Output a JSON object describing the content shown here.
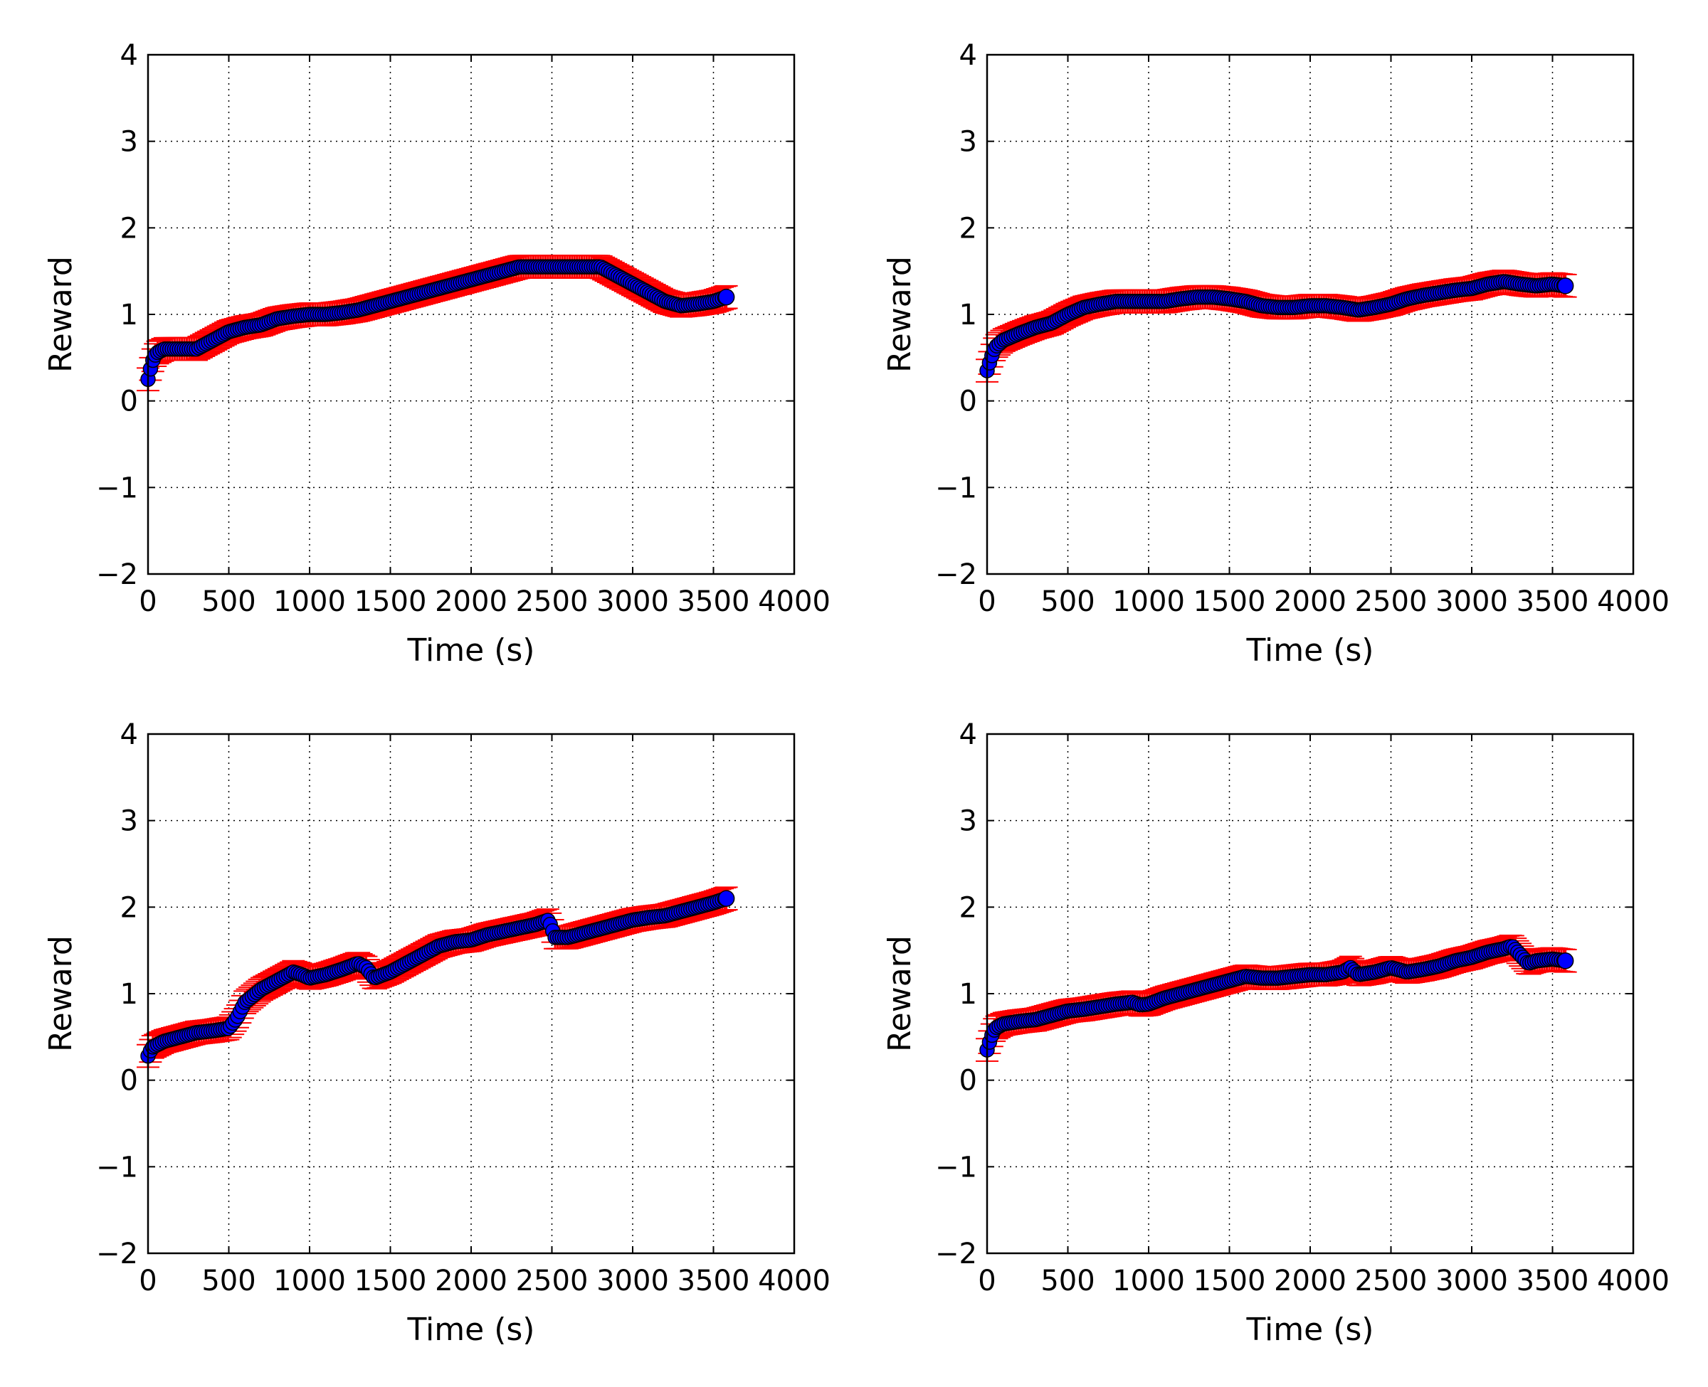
{
  "colors": {
    "marker_fill": "#0000ff",
    "marker_edge": "#000000",
    "errorbar": "#ff0000",
    "grid": "#000000",
    "background": "#ffffff"
  },
  "chart_data": [
    {
      "type": "scatter",
      "xlabel": "Time (s)",
      "ylabel": "Reward",
      "xlim": [
        0,
        4000
      ],
      "ylim": [
        -2,
        4
      ],
      "xticks": [
        0,
        500,
        1000,
        1500,
        2000,
        2500,
        3000,
        3500,
        4000
      ],
      "yticks": [
        -2,
        -1,
        0,
        1,
        2,
        3,
        4
      ],
      "xtick_labels": [
        "0",
        "500",
        "1000",
        "1500",
        "2000",
        "2500",
        "3000",
        "3500",
        "4000"
      ],
      "ytick_labels": [
        "−2",
        "−1",
        "0",
        "1",
        "2",
        "3",
        "4"
      ],
      "grid": true,
      "error_bars": true,
      "error_band": 0.13,
      "x": [
        0,
        25,
        50,
        100,
        200,
        300,
        400,
        500,
        600,
        700,
        800,
        900,
        1000,
        1100,
        1200,
        1300,
        1400,
        1500,
        1600,
        1700,
        1800,
        1900,
        2000,
        2100,
        2200,
        2300,
        2400,
        2500,
        2600,
        2700,
        2800,
        2850,
        2900,
        3000,
        3100,
        3200,
        3300,
        3400,
        3500,
        3580
      ],
      "y": [
        0.25,
        0.45,
        0.55,
        0.6,
        0.6,
        0.6,
        0.7,
        0.8,
        0.85,
        0.88,
        0.95,
        0.98,
        1.0,
        1.0,
        1.02,
        1.05,
        1.1,
        1.15,
        1.2,
        1.25,
        1.3,
        1.35,
        1.4,
        1.45,
        1.5,
        1.55,
        1.55,
        1.55,
        1.55,
        1.55,
        1.55,
        1.5,
        1.45,
        1.35,
        1.25,
        1.15,
        1.1,
        1.12,
        1.15,
        1.2
      ]
    },
    {
      "type": "scatter",
      "xlabel": "Time (s)",
      "ylabel": "Reward",
      "xlim": [
        0,
        4000
      ],
      "ylim": [
        -2,
        4
      ],
      "xticks": [
        0,
        500,
        1000,
        1500,
        2000,
        2500,
        3000,
        3500,
        4000
      ],
      "yticks": [
        -2,
        -1,
        0,
        1,
        2,
        3,
        4
      ],
      "xtick_labels": [
        "0",
        "500",
        "1000",
        "1500",
        "2000",
        "2500",
        "3000",
        "3500",
        "4000"
      ],
      "ytick_labels": [
        "−2",
        "−1",
        "0",
        "1",
        "2",
        "3",
        "4"
      ],
      "grid": true,
      "error_bars": true,
      "error_band": 0.13,
      "x": [
        0,
        25,
        50,
        100,
        200,
        300,
        400,
        500,
        600,
        700,
        800,
        900,
        1000,
        1100,
        1200,
        1300,
        1400,
        1500,
        1600,
        1700,
        1800,
        1900,
        2000,
        2100,
        2200,
        2300,
        2400,
        2500,
        2600,
        2700,
        2800,
        2900,
        3000,
        3100,
        3200,
        3300,
        3400,
        3500,
        3580
      ],
      "y": [
        0.35,
        0.5,
        0.62,
        0.7,
        0.78,
        0.85,
        0.9,
        1.0,
        1.08,
        1.12,
        1.15,
        1.15,
        1.15,
        1.15,
        1.18,
        1.2,
        1.2,
        1.18,
        1.15,
        1.1,
        1.08,
        1.08,
        1.1,
        1.1,
        1.08,
        1.05,
        1.08,
        1.12,
        1.18,
        1.22,
        1.25,
        1.28,
        1.3,
        1.35,
        1.38,
        1.35,
        1.33,
        1.35,
        1.33
      ]
    },
    {
      "type": "scatter",
      "xlabel": "Time (s)",
      "ylabel": "Reward",
      "xlim": [
        0,
        4000
      ],
      "ylim": [
        -2,
        4
      ],
      "xticks": [
        0,
        500,
        1000,
        1500,
        2000,
        2500,
        3000,
        3500,
        4000
      ],
      "yticks": [
        -2,
        -1,
        0,
        1,
        2,
        3,
        4
      ],
      "xtick_labels": [
        "0",
        "500",
        "1000",
        "1500",
        "2000",
        "2500",
        "3000",
        "3500",
        "4000"
      ],
      "ytick_labels": [
        "−2",
        "−1",
        "0",
        "1",
        "2",
        "3",
        "4"
      ],
      "grid": true,
      "error_bars": true,
      "error_band": 0.13,
      "x": [
        0,
        25,
        100,
        200,
        300,
        400,
        500,
        550,
        600,
        700,
        800,
        900,
        950,
        1000,
        1100,
        1200,
        1300,
        1350,
        1400,
        1500,
        1600,
        1700,
        1800,
        1900,
        2000,
        2100,
        2200,
        2300,
        2400,
        2480,
        2520,
        2600,
        2700,
        2800,
        2900,
        3000,
        3100,
        3200,
        3300,
        3400,
        3500,
        3580
      ],
      "y": [
        0.28,
        0.38,
        0.45,
        0.5,
        0.55,
        0.57,
        0.6,
        0.72,
        0.9,
        1.05,
        1.15,
        1.25,
        1.22,
        1.18,
        1.22,
        1.28,
        1.35,
        1.3,
        1.18,
        1.25,
        1.35,
        1.45,
        1.55,
        1.6,
        1.62,
        1.68,
        1.72,
        1.76,
        1.8,
        1.85,
        1.65,
        1.65,
        1.7,
        1.75,
        1.8,
        1.85,
        1.88,
        1.9,
        1.95,
        2.0,
        2.05,
        2.1
      ]
    },
    {
      "type": "scatter",
      "xlabel": "Time (s)",
      "ylabel": "Reward",
      "xlim": [
        0,
        4000
      ],
      "ylim": [
        -2,
        4
      ],
      "xticks": [
        0,
        500,
        1000,
        1500,
        2000,
        2500,
        3000,
        3500,
        4000
      ],
      "yticks": [
        -2,
        -1,
        0,
        1,
        2,
        3,
        4
      ],
      "xtick_labels": [
        "0",
        "500",
        "1000",
        "1500",
        "2000",
        "2500",
        "3000",
        "3500",
        "4000"
      ],
      "ytick_labels": [
        "−2",
        "−1",
        "0",
        "1",
        "2",
        "3",
        "4"
      ],
      "grid": true,
      "error_bars": true,
      "error_band": 0.13,
      "x": [
        0,
        25,
        50,
        100,
        200,
        300,
        400,
        500,
        600,
        700,
        800,
        900,
        950,
        1000,
        1100,
        1200,
        1300,
        1400,
        1500,
        1600,
        1700,
        1800,
        1900,
        2000,
        2100,
        2200,
        2250,
        2300,
        2400,
        2500,
        2600,
        2700,
        2800,
        2900,
        3000,
        3100,
        3200,
        3250,
        3300,
        3350,
        3400,
        3500,
        3580
      ],
      "y": [
        0.35,
        0.5,
        0.6,
        0.65,
        0.68,
        0.7,
        0.75,
        0.8,
        0.82,
        0.85,
        0.88,
        0.9,
        0.87,
        0.88,
        0.95,
        1.0,
        1.05,
        1.1,
        1.15,
        1.2,
        1.18,
        1.18,
        1.2,
        1.22,
        1.22,
        1.25,
        1.3,
        1.22,
        1.25,
        1.3,
        1.25,
        1.28,
        1.32,
        1.38,
        1.42,
        1.48,
        1.52,
        1.55,
        1.45,
        1.35,
        1.38,
        1.4,
        1.38
      ]
    }
  ]
}
